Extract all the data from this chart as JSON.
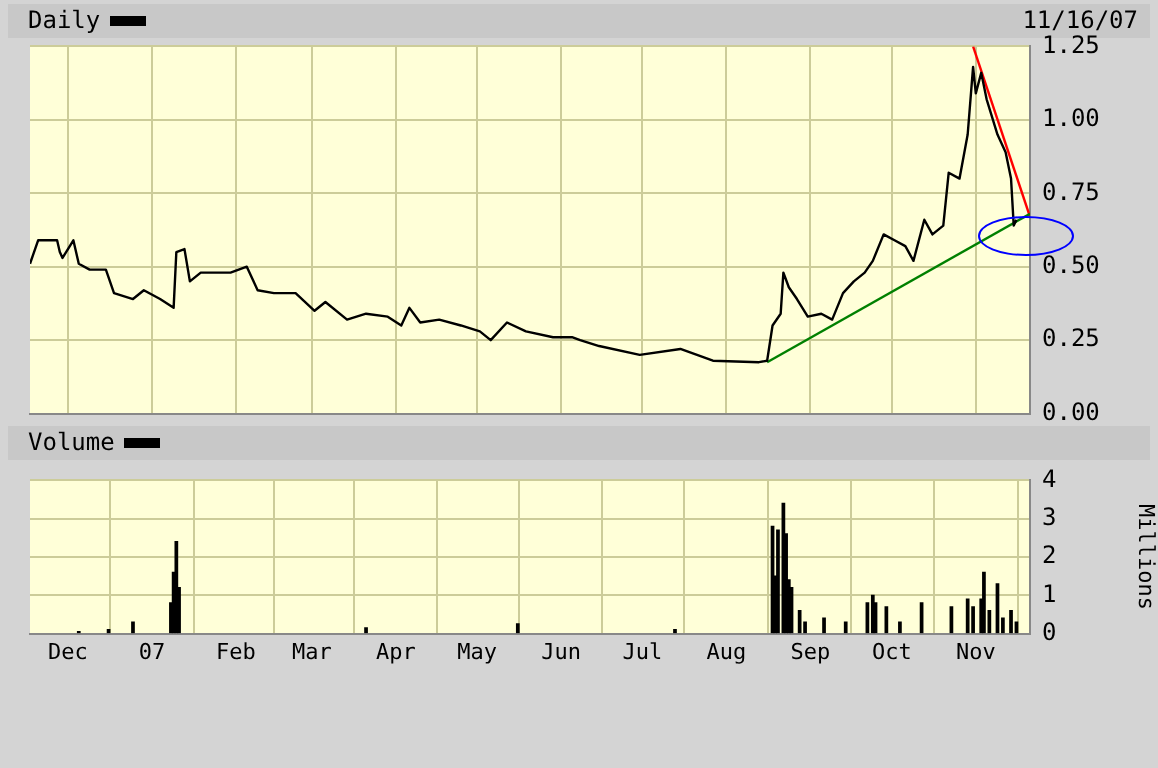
{
  "chart_data": [
    {
      "type": "line",
      "legend": "top left",
      "grid": true,
      "tick_labels": "y",
      "annotations": [
        "11/16/07"
      ],
      "xlim": [
        "2006-11-17",
        "2007-11-21"
      ],
      "xticks": [
        {
          "value": "2006-12-01",
          "label": null
        },
        {
          "value": "2007-01-01",
          "label": null
        },
        {
          "value": "2007-02-01",
          "label": null
        },
        {
          "value": "2007-03-01",
          "label": null
        },
        {
          "value": "2007-04-01",
          "label": null
        },
        {
          "value": "2007-05-01",
          "label": null
        },
        {
          "value": "2007-06-01",
          "label": null
        },
        {
          "value": "2007-07-01",
          "label": null
        },
        {
          "value": "2007-08-01",
          "label": null
        },
        {
          "value": "2007-09-01",
          "label": null
        },
        {
          "value": "2007-10-01",
          "label": null
        },
        {
          "value": "2007-11-01",
          "label": null
        }
      ],
      "ylim": [
        0,
        1.25
      ],
      "yticks": [
        {
          "value": 0,
          "label": "0.00"
        },
        {
          "value": 0.25,
          "label": "0.25"
        },
        {
          "value": 0.5,
          "label": "0.50"
        },
        {
          "value": 0.75,
          "label": "0.75"
        },
        {
          "value": 1,
          "label": "1.00"
        },
        {
          "value": 1.25,
          "label": "1.25"
        }
      ],
      "series": [
        {
          "name": "Daily",
          "color": "#000000",
          "type": "line",
          "x": [
            "2006-11-17",
            "2006-11-20",
            "2006-11-27",
            "2006-11-28",
            "2006-11-29",
            "2006-12-03",
            "2006-12-05",
            "2006-12-09",
            "2006-12-15",
            "2006-12-18",
            "2006-12-25",
            "2006-12-29",
            "2007-01-04",
            "2007-01-09",
            "2007-01-10",
            "2007-01-13",
            "2007-01-15",
            "2007-01-19",
            "2007-01-24",
            "2007-01-30",
            "2007-02-05",
            "2007-02-09",
            "2007-02-15",
            "2007-02-23",
            "2007-03-02",
            "2007-03-06",
            "2007-03-14",
            "2007-03-21",
            "2007-03-29",
            "2007-04-03",
            "2007-04-06",
            "2007-04-10",
            "2007-04-17",
            "2007-04-25",
            "2007-05-02",
            "2007-05-06",
            "2007-05-12",
            "2007-05-19",
            "2007-05-29",
            "2007-06-05",
            "2007-06-08",
            "2007-06-15",
            "2007-06-30",
            "2007-07-15",
            "2007-07-27",
            "2007-08-13",
            "2007-08-16",
            "2007-08-18",
            "2007-08-21",
            "2007-08-22",
            "2007-08-24",
            "2007-08-27",
            "2007-08-31",
            "2007-09-05",
            "2007-09-09",
            "2007-09-13",
            "2007-09-17",
            "2007-09-21",
            "2007-09-24",
            "2007-09-28",
            "2007-10-02",
            "2007-10-06",
            "2007-10-09",
            "2007-10-13",
            "2007-10-16",
            "2007-10-20",
            "2007-10-22",
            "2007-10-26",
            "2007-10-29",
            "2007-10-31",
            "2007-11-01",
            "2007-11-03",
            "2007-11-05",
            "2007-11-09",
            "2007-11-12",
            "2007-11-14",
            "2007-11-15",
            "2007-11-16"
          ],
          "values": [
            0.51,
            0.59,
            0.59,
            0.55,
            0.53,
            0.59,
            0.51,
            0.49,
            0.49,
            0.41,
            0.39,
            0.42,
            0.39,
            0.36,
            0.55,
            0.56,
            0.45,
            0.48,
            0.48,
            0.48,
            0.5,
            0.42,
            0.41,
            0.41,
            0.35,
            0.38,
            0.32,
            0.34,
            0.33,
            0.3,
            0.36,
            0.31,
            0.32,
            0.3,
            0.28,
            0.25,
            0.31,
            0.28,
            0.26,
            0.26,
            0.25,
            0.23,
            0.2,
            0.22,
            0.18,
            0.175,
            0.18,
            0.3,
            0.34,
            0.48,
            0.43,
            0.39,
            0.33,
            0.34,
            0.32,
            0.41,
            0.45,
            0.48,
            0.52,
            0.61,
            0.59,
            0.57,
            0.52,
            0.66,
            0.61,
            0.64,
            0.82,
            0.8,
            0.95,
            1.18,
            1.09,
            1.16,
            1.07,
            0.95,
            0.89,
            0.8,
            0.64,
            0.66
          ]
        },
        {
          "color": "#008000",
          "type": "line",
          "x": [
            "2007-08-16",
            "2007-11-21"
          ],
          "values": [
            0.175,
            0.68
          ]
        },
        {
          "color": "#ff0000",
          "type": "line",
          "x": [
            "2007-10-31",
            "2007-11-21"
          ],
          "values": [
            1.25,
            0.67
          ]
        }
      ]
    },
    {
      "type": "bar",
      "legend": "top left",
      "grid": true,
      "ylabel": "Millions",
      "xlim": [
        "2006-11-17",
        "2007-11-21"
      ],
      "xticks": [
        {
          "value": "2006-12-01",
          "label": "Dec"
        },
        {
          "value": "2007-01-01",
          "label": "07"
        },
        {
          "value": "2007-02-01",
          "label": "Feb"
        },
        {
          "value": "2007-03-01",
          "label": "Mar"
        },
        {
          "value": "2007-04-01",
          "label": "Apr"
        },
        {
          "value": "2007-05-01",
          "label": "May"
        },
        {
          "value": "2007-06-01",
          "label": "Jun"
        },
        {
          "value": "2007-07-01",
          "label": "Jul"
        },
        {
          "value": "2007-08-01",
          "label": "Aug"
        },
        {
          "value": "2007-09-01",
          "label": "Sep"
        },
        {
          "value": "2007-10-01",
          "label": "Oct"
        },
        {
          "value": "2007-11-01",
          "label": "Nov"
        }
      ],
      "ylim": [
        0,
        4
      ],
      "yticks": [
        0,
        1,
        2,
        3,
        4
      ],
      "series": [
        {
          "name": "Volume",
          "color": "#000000",
          "x": [
            "2006-12-05",
            "2006-12-16",
            "2006-12-25",
            "2007-01-08",
            "2007-01-09",
            "2007-01-10",
            "2007-01-11",
            "2007-03-21",
            "2007-05-16",
            "2007-07-13",
            "2007-08-18",
            "2007-08-19",
            "2007-08-20",
            "2007-08-22",
            "2007-08-23",
            "2007-08-24",
            "2007-08-25",
            "2007-08-28",
            "2007-08-30",
            "2007-09-06",
            "2007-09-14",
            "2007-09-22",
            "2007-09-24",
            "2007-09-25",
            "2007-09-29",
            "2007-10-04",
            "2007-10-12",
            "2007-10-23",
            "2007-10-29",
            "2007-10-31",
            "2007-11-03",
            "2007-11-04",
            "2007-11-06",
            "2007-11-09",
            "2007-11-11",
            "2007-11-14",
            "2007-11-16"
          ],
          "values": [
            0.05,
            0.1,
            0.3,
            0.8,
            1.6,
            2.4,
            1.2,
            0.15,
            0.25,
            0.1,
            2.8,
            1.5,
            2.7,
            3.4,
            2.6,
            1.4,
            1.2,
            0.6,
            0.3,
            0.4,
            0.3,
            0.8,
            1.0,
            0.8,
            0.7,
            0.3,
            0.8,
            0.7,
            0.9,
            0.7,
            0.9,
            1.6,
            0.6,
            1.3,
            0.4,
            0.6,
            0.3
          ]
        }
      ]
    }
  ]
}
